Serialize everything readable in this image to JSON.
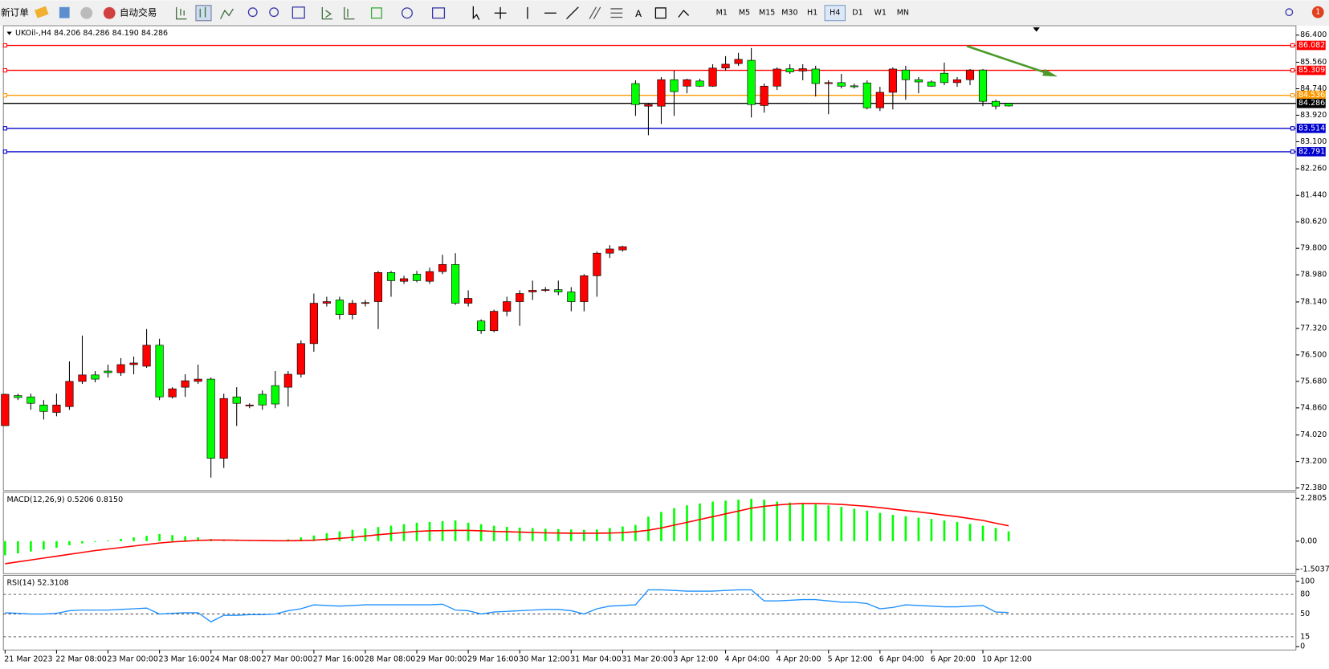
{
  "toolbar": {
    "new_order": "新订单",
    "auto_trading": "自动交易",
    "text_tool": "A",
    "timeframes": [
      "M1",
      "M5",
      "M15",
      "M30",
      "H1",
      "H4",
      "D1",
      "W1",
      "MN"
    ],
    "active_timeframe": "H4",
    "notification_count": "1"
  },
  "chart": {
    "type": "candlestick",
    "header": "UKOil-,H4 84.206 84.286 84.190 84.286",
    "ylim": [
      72.3,
      86.69
    ],
    "yticks": [
      {
        "value": 86.4,
        "label": "86.400"
      },
      {
        "value": 85.56,
        "label": "85.560"
      },
      {
        "value": 84.74,
        "label": "84.740"
      },
      {
        "value": 83.92,
        "label": "83.920"
      },
      {
        "value": 83.1,
        "label": "83.100"
      },
      {
        "value": 82.26,
        "label": "82.260"
      },
      {
        "value": 81.44,
        "label": "81.440"
      },
      {
        "value": 80.62,
        "label": "80.620"
      },
      {
        "value": 79.8,
        "label": "79.800"
      },
      {
        "value": 78.98,
        "label": "78.980"
      },
      {
        "value": 78.14,
        "label": "78.140"
      },
      {
        "value": 77.32,
        "label": "77.320"
      },
      {
        "value": 76.5,
        "label": "76.500"
      },
      {
        "value": 75.68,
        "label": "75.680"
      },
      {
        "value": 74.86,
        "label": "74.860"
      },
      {
        "value": 74.02,
        "label": "74.020"
      },
      {
        "value": 73.2,
        "label": "73.200"
      },
      {
        "value": 72.38,
        "label": "72.380"
      }
    ],
    "levels": [
      {
        "value": 86.082,
        "color": "#ff0000"
      },
      {
        "value": 85.309,
        "color": "#ff0000"
      },
      {
        "value": 84.536,
        "color": "#ff9900"
      },
      {
        "value": 84.286,
        "color": "#000000"
      },
      {
        "value": 83.514,
        "color": "#0000cc"
      },
      {
        "value": 82.791,
        "color": "#0000cc"
      }
    ],
    "up_color": "#00ff00",
    "down_color": "#ff0000",
    "categories": [
      "21 Mar 2023",
      null,
      null,
      null,
      "22 Mar 08:00",
      null,
      null,
      null,
      "23 Mar 00:00",
      null,
      null,
      null,
      "23 Mar 16:00",
      null,
      null,
      null,
      "24 Mar 08:00",
      null,
      null,
      null,
      "27 Mar 00:00",
      null,
      null,
      null,
      "27 Mar 16:00",
      null,
      null,
      null,
      "28 Mar 08:00",
      null,
      null,
      null,
      "29 Mar 00:00",
      null,
      null,
      null,
      "29 Mar 16:00",
      null,
      null,
      null,
      "30 Mar 12:00",
      null,
      null,
      null,
      "31 Mar 04:00",
      null,
      null,
      null,
      "31 Mar 20:00",
      null,
      null,
      null,
      "3 Apr 12:00",
      null,
      null,
      null,
      "4 Apr 04:00",
      null,
      null,
      null,
      "4 Apr 20:00",
      null,
      null,
      null,
      "5 Apr 12:00",
      null,
      null,
      null,
      "6 Apr 04:00",
      null,
      null,
      null,
      "6 Apr 20:00",
      null,
      null,
      null,
      "10 Apr 12:00",
      null,
      null
    ],
    "ohlc": [
      [
        75.28,
        75.3,
        74.3,
        74.31
      ],
      [
        75.18,
        75.3,
        75.1,
        75.24
      ],
      [
        75.0,
        75.3,
        74.8,
        75.2
      ],
      [
        74.75,
        75.1,
        74.5,
        74.95
      ],
      [
        74.95,
        75.3,
        74.6,
        74.72
      ],
      [
        75.68,
        76.3,
        74.8,
        74.9
      ],
      [
        75.88,
        77.1,
        75.6,
        75.68
      ],
      [
        75.75,
        76.0,
        75.65,
        75.88
      ],
      [
        75.95,
        76.2,
        75.8,
        76.0
      ],
      [
        76.2,
        76.4,
        75.85,
        75.95
      ],
      [
        76.25,
        76.45,
        75.9,
        76.2
      ],
      [
        76.8,
        77.3,
        76.1,
        76.15
      ],
      [
        75.2,
        77.0,
        75.1,
        76.8
      ],
      [
        75.45,
        75.5,
        75.15,
        75.2
      ],
      [
        75.7,
        75.9,
        75.2,
        75.5
      ],
      [
        75.75,
        76.2,
        75.6,
        75.68
      ],
      [
        73.3,
        75.8,
        72.7,
        75.75
      ],
      [
        75.15,
        75.3,
        73.0,
        73.3
      ],
      [
        75.0,
        75.5,
        74.3,
        75.2
      ],
      [
        74.95,
        75.0,
        74.85,
        74.92
      ],
      [
        74.95,
        75.4,
        74.8,
        75.28
      ],
      [
        74.98,
        76.0,
        74.85,
        75.55
      ],
      [
        75.9,
        76.0,
        74.9,
        75.5
      ],
      [
        76.85,
        76.95,
        75.8,
        75.9
      ],
      [
        78.1,
        78.4,
        76.6,
        76.85
      ],
      [
        78.15,
        78.3,
        78.0,
        78.1
      ],
      [
        77.75,
        78.3,
        77.6,
        78.2
      ],
      [
        78.1,
        78.2,
        77.6,
        77.75
      ],
      [
        78.12,
        78.2,
        78.0,
        78.1
      ],
      [
        79.05,
        79.1,
        77.3,
        78.15
      ],
      [
        78.8,
        79.1,
        78.3,
        79.05
      ],
      [
        78.86,
        78.95,
        78.7,
        78.78
      ],
      [
        78.8,
        79.1,
        78.75,
        79.0
      ],
      [
        79.08,
        79.2,
        78.7,
        78.78
      ],
      [
        79.3,
        79.6,
        79.0,
        79.08
      ],
      [
        78.1,
        79.65,
        78.05,
        79.3
      ],
      [
        78.25,
        78.5,
        78.0,
        78.1
      ],
      [
        77.25,
        77.6,
        77.15,
        77.55
      ],
      [
        77.85,
        77.9,
        77.2,
        77.25
      ],
      [
        78.15,
        78.3,
        77.7,
        77.85
      ],
      [
        78.4,
        78.5,
        77.4,
        78.15
      ],
      [
        78.5,
        78.8,
        78.2,
        78.45
      ],
      [
        78.52,
        78.6,
        78.45,
        78.5
      ],
      [
        78.45,
        78.8,
        78.35,
        78.52
      ],
      [
        78.15,
        78.6,
        77.85,
        78.45
      ],
      [
        78.95,
        79.0,
        77.85,
        78.15
      ],
      [
        79.65,
        79.7,
        78.3,
        78.95
      ],
      [
        79.78,
        79.9,
        79.5,
        79.65
      ],
      [
        79.85,
        79.88,
        79.7,
        79.75
      ],
      [
        84.25,
        85.0,
        83.9,
        84.9
      ],
      [
        84.25,
        84.3,
        83.3,
        84.2
      ],
      [
        85.02,
        85.1,
        83.65,
        84.2
      ],
      [
        84.65,
        85.3,
        83.9,
        85.02
      ],
      [
        85.02,
        85.05,
        84.6,
        84.82
      ],
      [
        84.82,
        85.05,
        84.8,
        84.98
      ],
      [
        85.38,
        85.5,
        84.8,
        84.82
      ],
      [
        85.5,
        85.75,
        85.3,
        85.38
      ],
      [
        85.65,
        85.85,
        85.45,
        85.52
      ],
      [
        84.25,
        86.0,
        83.85,
        85.62
      ],
      [
        84.82,
        84.9,
        84.0,
        84.22
      ],
      [
        85.35,
        85.4,
        84.7,
        84.82
      ],
      [
        85.26,
        85.5,
        85.2,
        85.36
      ],
      [
        85.36,
        85.5,
        85.0,
        85.29
      ],
      [
        84.9,
        85.45,
        84.5,
        85.35
      ],
      [
        84.93,
        85.0,
        83.95,
        84.9
      ],
      [
        84.82,
        85.2,
        84.75,
        84.93
      ],
      [
        84.8,
        84.9,
        84.75,
        84.83
      ],
      [
        84.15,
        85.0,
        84.1,
        84.92
      ],
      [
        84.63,
        84.8,
        84.05,
        84.15
      ],
      [
        85.35,
        85.4,
        84.1,
        84.63
      ],
      [
        85.02,
        85.45,
        84.4,
        85.32
      ],
      [
        84.95,
        85.1,
        84.6,
        85.02
      ],
      [
        84.82,
        85.0,
        84.8,
        84.95
      ],
      [
        84.93,
        85.55,
        84.85,
        85.22
      ],
      [
        85.02,
        85.1,
        84.8,
        84.93
      ],
      [
        85.32,
        85.35,
        84.85,
        85.02
      ],
      [
        84.35,
        85.35,
        84.2,
        85.32
      ],
      [
        84.2,
        84.4,
        84.1,
        84.35
      ],
      [
        84.206,
        84.286,
        84.19,
        84.286
      ]
    ]
  },
  "macd": {
    "label": "MACD(12,26,9) 0.5206 0.8150",
    "ylim": [
      -1.5037,
      2.2805
    ],
    "yticks": [
      2.2805,
      {
        "value": 0,
        "label": "0.00"
      },
      -1.5037
    ],
    "histogram_color": "#00ff00",
    "signal_color": "#ff0000",
    "histogram": [
      -0.75,
      -0.65,
      -0.55,
      -0.45,
      -0.35,
      -0.22,
      -0.12,
      -0.04,
      0.04,
      0.12,
      0.2,
      0.28,
      0.38,
      0.32,
      0.26,
      0.2,
      0.12,
      0.04,
      0.02,
      0.03,
      0.04,
      0.06,
      0.1,
      0.2,
      0.3,
      0.42,
      0.52,
      0.6,
      0.68,
      0.75,
      0.82,
      0.9,
      0.98,
      1.02,
      1.06,
      1.1,
      0.98,
      0.9,
      0.82,
      0.76,
      0.72,
      0.7,
      0.66,
      0.64,
      0.62,
      0.6,
      0.62,
      0.7,
      0.78,
      0.86,
      1.3,
      1.55,
      1.75,
      1.9,
      2.0,
      2.1,
      2.15,
      2.2,
      2.25,
      2.2,
      2.1,
      2.05,
      2.0,
      1.95,
      1.9,
      1.82,
      1.72,
      1.62,
      1.5,
      1.4,
      1.32,
      1.25,
      1.18,
      1.1,
      1.02,
      0.92,
      0.82,
      0.7,
      0.5206
    ],
    "signal": [
      -1.2,
      -1.1,
      -1.0,
      -0.9,
      -0.8,
      -0.7,
      -0.6,
      -0.5,
      -0.42,
      -0.34,
      -0.26,
      -0.18,
      -0.1,
      -0.04,
      0.0,
      0.04,
      0.06,
      0.06,
      0.05,
      0.04,
      0.03,
      0.02,
      0.02,
      0.03,
      0.05,
      0.1,
      0.15,
      0.2,
      0.27,
      0.34,
      0.4,
      0.46,
      0.52,
      0.55,
      0.56,
      0.57,
      0.57,
      0.55,
      0.52,
      0.5,
      0.48,
      0.46,
      0.44,
      0.43,
      0.42,
      0.42,
      0.42,
      0.43,
      0.45,
      0.5,
      0.58,
      0.7,
      0.85,
      1.0,
      1.15,
      1.3,
      1.45,
      1.6,
      1.75,
      1.85,
      1.92,
      1.97,
      2.0,
      2.0,
      1.98,
      1.95,
      1.9,
      1.85,
      1.78,
      1.7,
      1.62,
      1.55,
      1.47,
      1.38,
      1.3,
      1.2,
      1.1,
      0.95,
      0.815
    ]
  },
  "rsi": {
    "label": "RSI(14) 52.3108",
    "ylim": [
      0,
      100
    ],
    "yticks": [
      100,
      80,
      50,
      15,
      0
    ],
    "color": "#1e90ff",
    "values": [
      52,
      51,
      50,
      50,
      51,
      55,
      56,
      56,
      56,
      57,
      58,
      59,
      50,
      51,
      52,
      52,
      38,
      48,
      48,
      49,
      49,
      50,
      55,
      58,
      64,
      63,
      62,
      63,
      64,
      64,
      64,
      64,
      64,
      64,
      65,
      56,
      55,
      50,
      53,
      54,
      55,
      56,
      57,
      57,
      55,
      50,
      58,
      62,
      63,
      64,
      87,
      87,
      86,
      85,
      85,
      85,
      86,
      87,
      87,
      70,
      70,
      71,
      72,
      72,
      70,
      68,
      68,
      66,
      58,
      60,
      64,
      63,
      62,
      61,
      61,
      62,
      63,
      53,
      52.3108
    ]
  }
}
